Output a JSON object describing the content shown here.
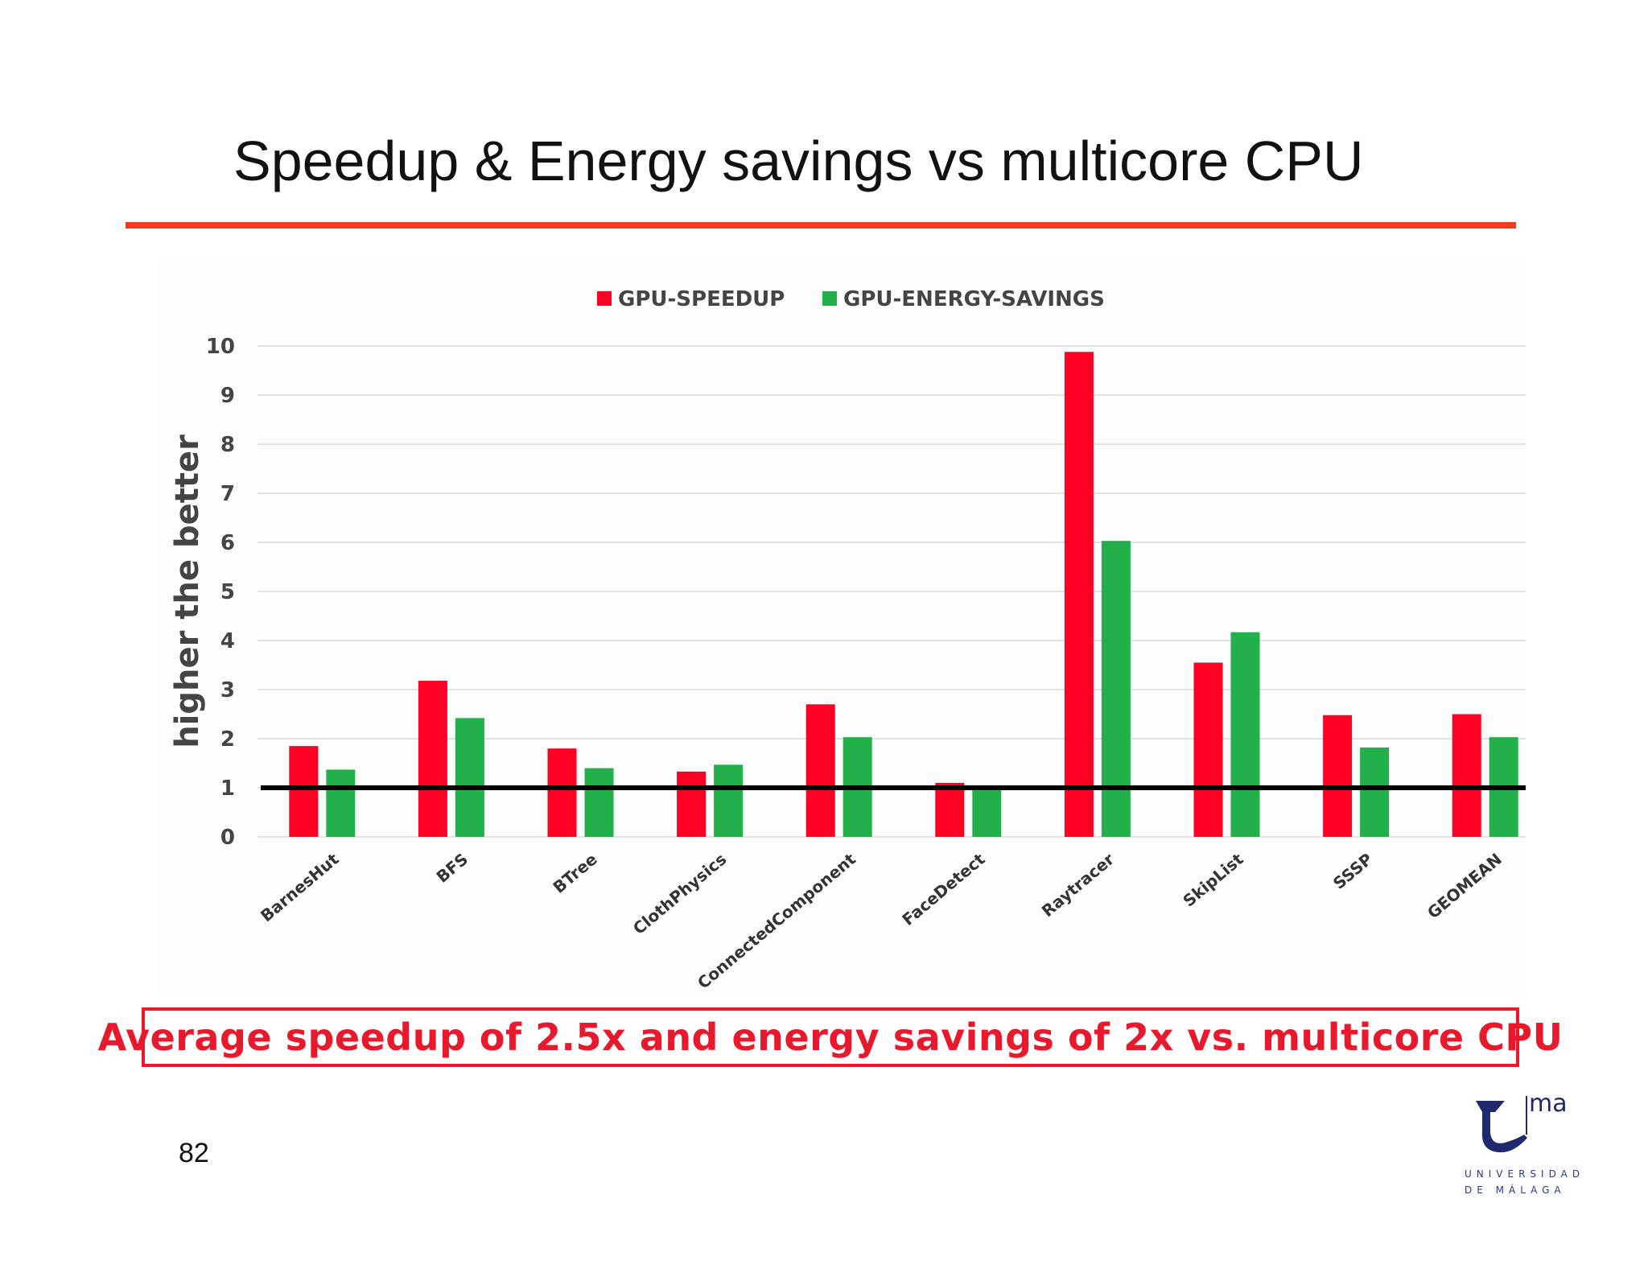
{
  "slide": {
    "title": "Speedup & Energy savings vs multicore CPU",
    "page_number": "82",
    "summary": "Average speedup of 2.5x and energy savings of 2x vs. multicore CPU",
    "logo": {
      "mark": "ma",
      "name_line1": "UNIVERSIDAD",
      "name_line2": "DE MÁLAGA"
    }
  },
  "colors": {
    "title_rule": "#f23a1c",
    "speedup": "#ff0022",
    "energy": "#22b04b",
    "summary": "#e8192c",
    "baseline": "#000000"
  },
  "chart_data": {
    "type": "bar",
    "title": "",
    "xlabel": "",
    "ylabel": "higher the better",
    "ylim": [
      0,
      10
    ],
    "yticks": [
      0,
      1,
      2,
      3,
      4,
      5,
      6,
      7,
      8,
      9,
      10
    ],
    "grid": true,
    "legend_position": "top-center",
    "reference_line": 1,
    "categories": [
      "BarnesHut",
      "BFS",
      "BTree",
      "ClothPhysics",
      "ConnectedComponent",
      "FaceDetect",
      "Raytracer",
      "SkipList",
      "SSSP",
      "GEOMEAN"
    ],
    "series": [
      {
        "name": "GPU-SPEEDUP",
        "color": "#ff0022",
        "values": [
          1.85,
          3.18,
          1.8,
          1.33,
          2.7,
          1.1,
          9.88,
          3.55,
          2.48,
          2.5
        ]
      },
      {
        "name": "GPU-ENERGY-SAVINGS",
        "color": "#22b04b",
        "values": [
          1.37,
          2.42,
          1.4,
          1.47,
          2.03,
          0.95,
          6.03,
          4.17,
          1.82,
          2.03
        ]
      }
    ]
  }
}
